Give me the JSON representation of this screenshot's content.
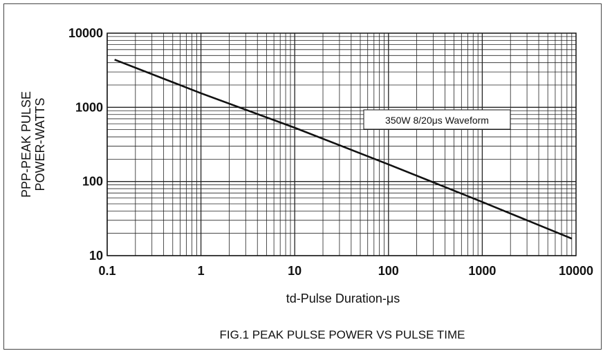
{
  "chart_data": {
    "type": "line",
    "x_scale": "log",
    "y_scale": "log",
    "xlim": [
      0.1,
      10000
    ],
    "ylim": [
      10,
      10000
    ],
    "x_ticks": [
      "0.1",
      "1",
      "10",
      "100",
      "1000",
      "10000"
    ],
    "y_ticks": [
      "10",
      "100",
      "1000",
      "10000"
    ],
    "xlabel": "td-Pulse Duration-μs",
    "ylabel_line1": "PPP-PEAK PULSE",
    "ylabel_line2": "POWER-WATTS",
    "grid": true,
    "series": [
      {
        "x": [
          0.12,
          1,
          10,
          100,
          1000,
          9000
        ],
        "y": [
          4400,
          1550,
          530,
          170,
          53,
          17
        ]
      }
    ],
    "annotation": "350W 8/20μs Waveform",
    "caption": "FIG.1 PEAK PULSE POWER VS PULSE TIME",
    "colors": {
      "line": "#111111",
      "grid": "#222222"
    }
  }
}
